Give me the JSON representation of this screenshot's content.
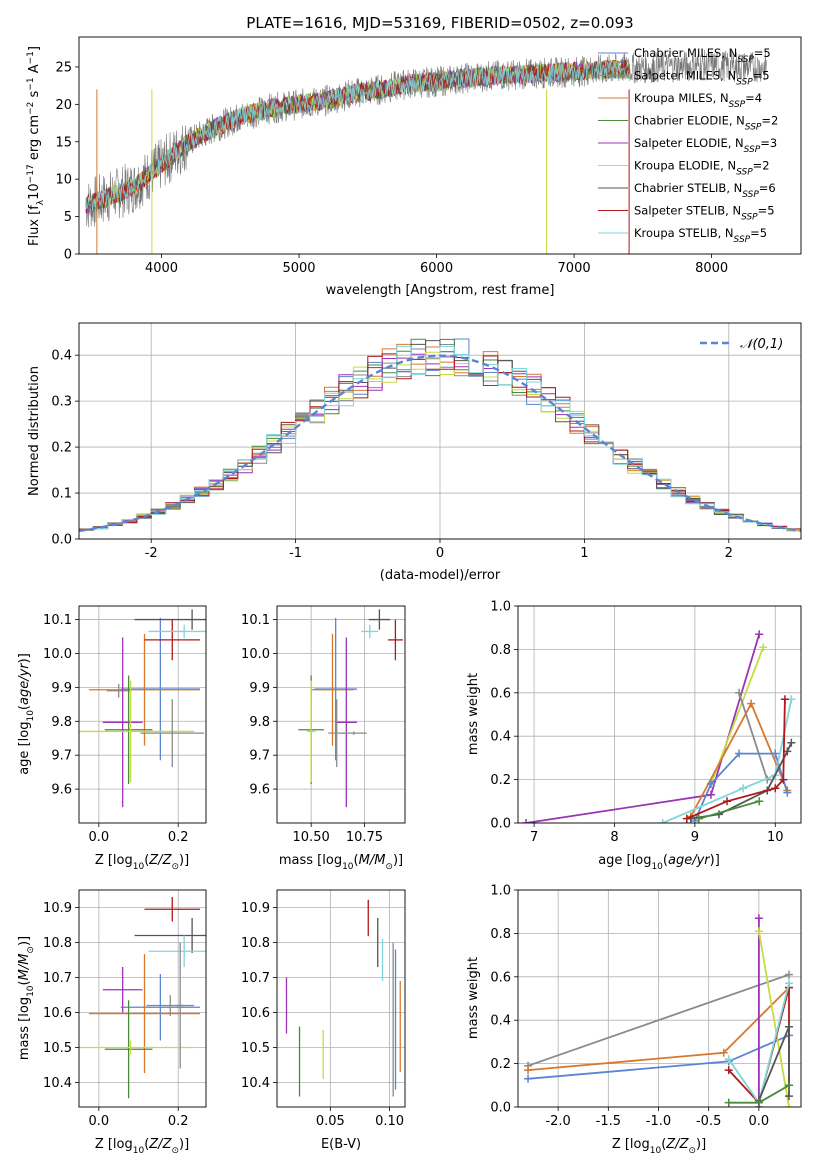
{
  "title": "PLATE=1616, MJD=53169, FIBERID=0502, z=0.093",
  "models": [
    {
      "label": "Chabrier MILES, N",
      "n": "5",
      "color": "#5b84d2"
    },
    {
      "label": "Salpeter MILES, N",
      "n": "5",
      "color": "#8a8a8a"
    },
    {
      "label": "Kroupa MILES, N",
      "n": "4",
      "color": "#d9782d"
    },
    {
      "label": "Chabrier ELODIE, N",
      "n": "2",
      "color": "#4a8a3a"
    },
    {
      "label": "Salpeter ELODIE, N",
      "n": "3",
      "color": "#9b34b6"
    },
    {
      "label": "Kroupa ELODIE, N",
      "n": "2",
      "color": "#c7dc40"
    },
    {
      "label": "Chabrier STELIB, N",
      "n": "6",
      "color": "#555555"
    },
    {
      "label": "Salpeter STELIB, N",
      "n": "5",
      "color": "#b0181a"
    },
    {
      "label": "Kroupa STELIB, N",
      "n": "5",
      "color": "#7fd6dc"
    }
  ],
  "ssp_subscript": "SSP",
  "chart_data": [
    {
      "id": "spectrum",
      "type": "line",
      "xlabel": "wavelength [Angstrom, rest frame]",
      "ylabel": "Flux [f",
      "xlim": [
        3400,
        8650
      ],
      "ylim": [
        0,
        29
      ],
      "xticks": [
        4000,
        5000,
        6000,
        7000,
        8000
      ],
      "yticks": [
        0,
        5,
        10,
        15,
        20,
        25
      ],
      "continuum": [
        [
          3450,
          6.5
        ],
        [
          3600,
          7.5
        ],
        [
          3800,
          9
        ],
        [
          4000,
          12
        ],
        [
          4200,
          15
        ],
        [
          4400,
          17
        ],
        [
          4600,
          18.5
        ],
        [
          4800,
          19.5
        ],
        [
          5000,
          20
        ],
        [
          5200,
          20.5
        ],
        [
          5400,
          21.5
        ],
        [
          5600,
          22
        ],
        [
          5800,
          22.8
        ],
        [
          6000,
          23
        ],
        [
          6200,
          23.5
        ],
        [
          6400,
          23.8
        ],
        [
          6600,
          24
        ],
        [
          6800,
          24.2
        ],
        [
          7000,
          24.4
        ],
        [
          7200,
          24.6
        ],
        [
          7400,
          24.8
        ],
        [
          7700,
          25
        ],
        [
          8000,
          25.2
        ],
        [
          8300,
          25
        ]
      ],
      "data_range": [
        3450,
        8400
      ],
      "model_range": [
        3450,
        7400
      ]
    },
    {
      "id": "residuals",
      "type": "histogram",
      "xlabel": "(data-model)/error",
      "ylabel": "Normed distribution",
      "xlim": [
        -2.5,
        2.5
      ],
      "ylim": [
        0,
        0.47
      ],
      "xticks": [
        -2,
        -1,
        0,
        1,
        2
      ],
      "yticks": [
        0.0,
        0.1,
        0.2,
        0.3,
        0.4
      ],
      "bin_width": 0.1,
      "legend": "𝒩(0,1)",
      "gaussian": {
        "mean": 0,
        "sigma": 1
      }
    },
    {
      "id": "age_vs_Z",
      "type": "errorbar",
      "xlabel": "Z [log",
      "ylabel": "age  [log",
      "xlim": [
        -0.05,
        0.27
      ],
      "ylim": [
        9.5,
        10.14
      ],
      "xticks": [
        0.0,
        0.2
      ],
      "yticks": [
        9.6,
        9.7,
        9.8,
        9.9,
        10.0,
        10.1
      ],
      "points": [
        {
          "m": 0,
          "x": 0.155,
          "y": 9.895,
          "xerr": 0.1,
          "yerr": 0.21
        },
        {
          "m": 1,
          "x": 0.05,
          "y": 9.89,
          "xerr": 0.03,
          "yerr": 0.02
        },
        {
          "m": 2,
          "x": 0.115,
          "y": 9.893,
          "xerr": 0.14,
          "yerr": 0.165
        },
        {
          "m": 3,
          "x": 0.075,
          "y": 9.775,
          "xerr": 0.06,
          "yerr": 0.16
        },
        {
          "m": 4,
          "x": 0.06,
          "y": 9.797,
          "xerr": 0.05,
          "yerr": 0.25
        },
        {
          "m": 5,
          "x": 0.08,
          "y": 9.77,
          "xerr": 0.16,
          "yerr": 0.15
        },
        {
          "m": 6,
          "x": 0.235,
          "y": 10.1,
          "xerr": 0.145,
          "yerr": 0.03
        },
        {
          "m": 7,
          "x": 0.185,
          "y": 10.04,
          "xerr": 0.07,
          "yerr": 0.06
        },
        {
          "m": 8,
          "x": 0.215,
          "y": 10.065,
          "xerr": 0.09,
          "yerr": 0.02
        },
        {
          "m": 1,
          "x": 0.185,
          "y": 9.765,
          "xerr": 0.08,
          "yerr": 0.1
        }
      ]
    },
    {
      "id": "age_vs_mass",
      "type": "errorbar",
      "xlabel": "mass [log",
      "ylabel": "",
      "xlim": [
        10.34,
        10.94
      ],
      "ylim": [
        9.5,
        10.14
      ],
      "xticks": [
        10.5,
        10.75
      ],
      "yticks": [
        9.6,
        9.7,
        9.8,
        9.9,
        10.0,
        10.1
      ],
      "points": [
        {
          "m": 0,
          "x": 10.615,
          "y": 9.895,
          "xerr": 0.1,
          "yerr": 0.21
        },
        {
          "m": 2,
          "x": 10.6,
          "y": 9.893,
          "xerr": 0.1,
          "yerr": 0.165
        },
        {
          "m": 3,
          "x": 10.5,
          "y": 9.775,
          "xerr": 0.06,
          "yerr": 0.16
        },
        {
          "m": 4,
          "x": 10.665,
          "y": 9.797,
          "xerr": 0.05,
          "yerr": 0.25
        },
        {
          "m": 5,
          "x": 10.5,
          "y": 9.77,
          "xerr": 0.02,
          "yerr": 0.15
        },
        {
          "m": 6,
          "x": 10.82,
          "y": 10.1,
          "xerr": 0.05,
          "yerr": 0.03
        },
        {
          "m": 7,
          "x": 10.895,
          "y": 10.04,
          "xerr": 0.035,
          "yerr": 0.06
        },
        {
          "m": 8,
          "x": 10.775,
          "y": 10.065,
          "xerr": 0.04,
          "yerr": 0.02
        },
        {
          "m": 1,
          "x": 10.62,
          "y": 9.765,
          "xerr": 0.04,
          "yerr": 0.1
        },
        {
          "m": 1,
          "x": 10.7,
          "y": 9.765,
          "xerr": 0.06,
          "yerr": 0.005
        }
      ]
    },
    {
      "id": "weight_vs_age",
      "type": "line",
      "xlabel": "age  [log",
      "ylabel": "mass weight",
      "xlim": [
        6.8,
        10.32
      ],
      "ylim": [
        0,
        1.0
      ],
      "xticks": [
        7,
        8,
        9,
        10
      ],
      "yticks": [
        0.0,
        0.2,
        0.4,
        0.6,
        0.8,
        1.0
      ],
      "series": [
        {
          "m": 4,
          "x": [
            6.9,
            9.2,
            9.8
          ],
          "y": [
            0.0,
            0.13,
            0.87
          ]
        },
        {
          "m": 5,
          "x": [
            9.2,
            9.85
          ],
          "y": [
            0.18,
            0.81
          ]
        },
        {
          "m": 2,
          "x": [
            8.95,
            9.7,
            10.15
          ],
          "y": [
            0.03,
            0.55,
            0.15
          ]
        },
        {
          "m": 1,
          "x": [
            9.55,
            9.9
          ],
          "y": [
            0.6,
            0.2
          ]
        },
        {
          "m": 0,
          "x": [
            9.0,
            9.2,
            9.55,
            10.0,
            10.15
          ],
          "y": [
            0.01,
            0.18,
            0.32,
            0.32,
            0.14
          ]
        },
        {
          "m": 8,
          "x": [
            8.6,
            9.6,
            10.0,
            10.2
          ],
          "y": [
            0.0,
            0.16,
            0.22,
            0.57
          ]
        },
        {
          "m": 6,
          "x": [
            8.95,
            9.3,
            9.9,
            10.15,
            10.2
          ],
          "y": [
            0.02,
            0.04,
            0.15,
            0.33,
            0.37
          ]
        },
        {
          "m": 7,
          "x": [
            8.9,
            9.4,
            10.0,
            10.1,
            10.12
          ],
          "y": [
            0.02,
            0.1,
            0.16,
            0.2,
            0.57
          ]
        },
        {
          "m": 3,
          "x": [
            9.05,
            9.8
          ],
          "y": [
            0.02,
            0.1
          ]
        }
      ]
    },
    {
      "id": "mass_vs_Z",
      "type": "errorbar",
      "xlabel": "Z [log",
      "ylabel": "mass [log",
      "xlim": [
        -0.05,
        0.27
      ],
      "ylim": [
        10.33,
        10.95
      ],
      "xticks": [
        0.0,
        0.2
      ],
      "yticks": [
        10.4,
        10.5,
        10.6,
        10.7,
        10.8,
        10.9
      ],
      "points": [
        {
          "m": 0,
          "x": 0.155,
          "y": 10.615,
          "xerr": 0.1,
          "yerr": 0.095
        },
        {
          "m": 1,
          "x": 0.18,
          "y": 10.62,
          "xerr": 0.06,
          "yerr": 0.03
        },
        {
          "m": 2,
          "x": 0.115,
          "y": 10.597,
          "xerr": 0.14,
          "yerr": 0.17
        },
        {
          "m": 3,
          "x": 0.075,
          "y": 10.495,
          "xerr": 0.06,
          "yerr": 0.14
        },
        {
          "m": 4,
          "x": 0.06,
          "y": 10.665,
          "xerr": 0.05,
          "yerr": 0.065
        },
        {
          "m": 5,
          "x": 0.08,
          "y": 10.5,
          "xerr": 0.16,
          "yerr": 0.02
        },
        {
          "m": 6,
          "x": 0.235,
          "y": 10.82,
          "xerr": 0.145,
          "yerr": 0.05
        },
        {
          "m": 7,
          "x": 0.185,
          "y": 10.895,
          "xerr": 0.07,
          "yerr": 0.035
        },
        {
          "m": 8,
          "x": 0.215,
          "y": 10.775,
          "xerr": 0.09,
          "yerr": 0.045
        },
        {
          "m": 1,
          "x": 0.205,
          "y": 10.62,
          "xerr": 0.01,
          "yerr": 0.18
        }
      ]
    },
    {
      "id": "mass_vs_ebv",
      "type": "errorbar",
      "xlabel": "E(B-V)",
      "ylabel": "",
      "xlim": [
        0.005,
        0.113
      ],
      "ylim": [
        10.33,
        10.95
      ],
      "xticks": [
        0.05,
        0.1
      ],
      "yticks": [
        10.4,
        10.5,
        10.6,
        10.7,
        10.8,
        10.9
      ],
      "points": [
        {
          "m": 4,
          "x": 0.013,
          "y": 10.62,
          "xerr": 0,
          "yerr": 0.08
        },
        {
          "m": 3,
          "x": 0.024,
          "y": 10.46,
          "xerr": 0,
          "yerr": 0.1
        },
        {
          "m": 5,
          "x": 0.044,
          "y": 10.48,
          "xerr": 0,
          "yerr": 0.07
        },
        {
          "m": 7,
          "x": 0.082,
          "y": 10.87,
          "xerr": 0,
          "yerr": 0.052
        },
        {
          "m": 6,
          "x": 0.09,
          "y": 10.8,
          "xerr": 0,
          "yerr": 0.07
        },
        {
          "m": 8,
          "x": 0.094,
          "y": 10.75,
          "xerr": 0,
          "yerr": 0.06
        },
        {
          "m": 1,
          "x": 0.103,
          "y": 10.58,
          "xerr": 0,
          "yerr": 0.22
        },
        {
          "m": 0,
          "x": 0.105,
          "y": 10.58,
          "xerr": 0,
          "yerr": 0.2
        },
        {
          "m": 2,
          "x": 0.109,
          "y": 10.56,
          "xerr": 0,
          "yerr": 0.13
        }
      ]
    },
    {
      "id": "weight_vs_Z",
      "type": "line",
      "xlabel": "Z [log",
      "ylabel": "mass weight",
      "xlim": [
        -2.4,
        0.42
      ],
      "ylim": [
        0,
        1.0
      ],
      "xticks": [
        -2.0,
        -1.5,
        -1.0,
        -0.5,
        0.0
      ],
      "yticks": [
        0.0,
        0.2,
        0.4,
        0.6,
        0.8,
        1.0
      ],
      "series": [
        {
          "m": 1,
          "x": [
            -2.3,
            0.3
          ],
          "y": [
            0.19,
            0.61
          ]
        },
        {
          "m": 0,
          "x": [
            -2.3,
            -0.3,
            0.3
          ],
          "y": [
            0.13,
            0.21,
            0.33
          ]
        },
        {
          "m": 2,
          "x": [
            -2.3,
            -0.35,
            0.3
          ],
          "y": [
            0.17,
            0.25,
            0.55
          ]
        },
        {
          "m": 4,
          "x": [
            0.0,
            0.0
          ],
          "y": [
            0.0,
            0.87
          ]
        },
        {
          "m": 5,
          "x": [
            0.0,
            0.3
          ],
          "y": [
            0.81,
            0.0
          ]
        },
        {
          "m": 7,
          "x": [
            -0.3,
            0.0,
            0.3,
            0.3
          ],
          "y": [
            0.17,
            0.02,
            0.55,
            0.1
          ]
        },
        {
          "m": 8,
          "x": [
            -0.3,
            0.0,
            0.3
          ],
          "y": [
            0.22,
            0.02,
            0.57
          ]
        },
        {
          "m": 6,
          "x": [
            0.0,
            0.3,
            0.3
          ],
          "y": [
            0.03,
            0.37,
            0.05
          ]
        },
        {
          "m": 3,
          "x": [
            -0.3,
            0.0,
            0.3
          ],
          "y": [
            0.02,
            0.02,
            0.1
          ]
        }
      ]
    }
  ]
}
